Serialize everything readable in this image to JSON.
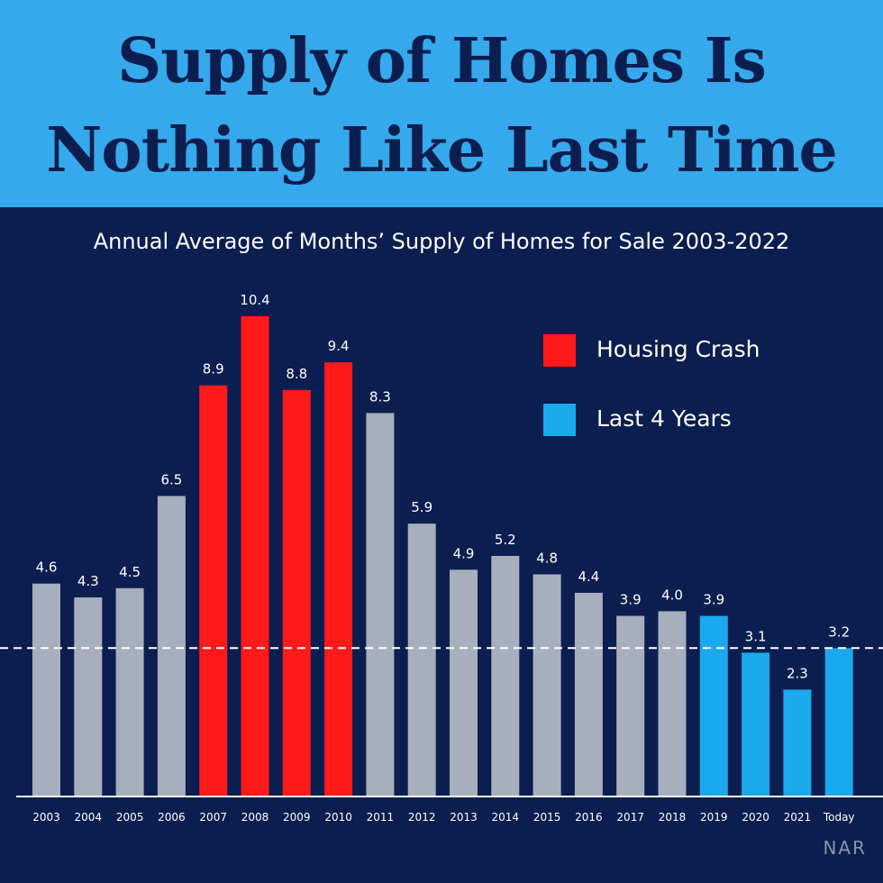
{
  "header": {
    "title_line1": "Supply of Homes Is",
    "title_line2": "Nothing Like Last Time"
  },
  "source_label": "NAR",
  "chart_data": {
    "type": "bar",
    "title": "Supply of Homes Is Nothing Like Last Time",
    "subtitle": "Annual Average of Months’ Supply of Homes for Sale 2003-2022",
    "xlabel": "",
    "ylabel": "",
    "categories": [
      "2003",
      "2004",
      "2005",
      "2006",
      "2007",
      "2008",
      "2009",
      "2010",
      "2011",
      "2012",
      "2013",
      "2014",
      "2015",
      "2016",
      "2017",
      "2018",
      "2019",
      "2020",
      "2021",
      "Today"
    ],
    "values": [
      4.6,
      4.3,
      4.5,
      6.5,
      8.9,
      10.4,
      8.8,
      9.4,
      8.3,
      5.9,
      4.9,
      5.2,
      4.8,
      4.4,
      3.9,
      4.0,
      3.9,
      3.1,
      2.3,
      3.2
    ],
    "value_labels": [
      "4.6",
      "4.3",
      "4.5",
      "6.5",
      "8.9",
      "10.4",
      "8.8",
      "9.4",
      "8.3",
      "5.9",
      "4.9",
      "5.2",
      "4.8",
      "4.4",
      "3.9",
      "4.0",
      "3.9",
      "3.1",
      "2.3",
      "3.2"
    ],
    "groups": [
      "other",
      "other",
      "other",
      "other",
      "crash",
      "crash",
      "crash",
      "crash",
      "other",
      "other",
      "other",
      "other",
      "other",
      "other",
      "other",
      "other",
      "last4",
      "last4",
      "last4",
      "last4"
    ],
    "ylim": [
      0,
      10.4
    ],
    "grid": false,
    "reference_line": {
      "value": 3.2,
      "style": "dashed"
    },
    "legend": {
      "position": "top-right",
      "items": [
        {
          "label": "Housing Crash",
          "group": "crash",
          "color": "#ff1a1a"
        },
        {
          "label": "Last 4 Years",
          "group": "last4",
          "color": "#1aa9ec"
        }
      ]
    },
    "colors": {
      "other": "#a7afbd",
      "crash": "#ff1a1a",
      "last4": "#1aa9ec",
      "background": "#0c1e4f",
      "title_band": "#35a9ec"
    }
  }
}
